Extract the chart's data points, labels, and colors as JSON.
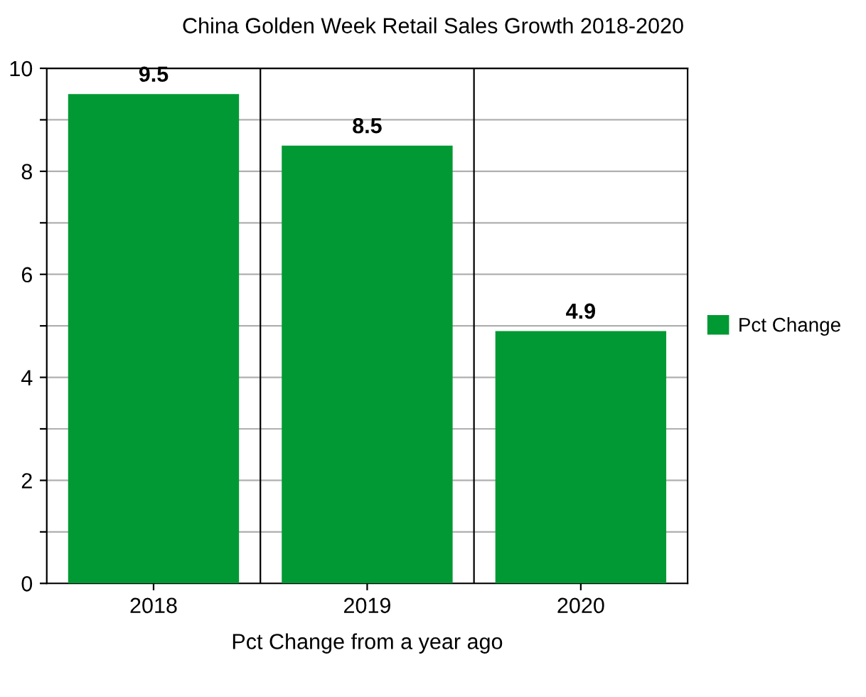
{
  "chart_data": {
    "type": "bar",
    "title": "China Golden Week Retail Sales Growth 2018-2020",
    "xlabel": "Pct Change from a year ago",
    "categories": [
      "2018",
      "2019",
      "2020"
    ],
    "series": [
      {
        "name": "Pct Change",
        "color": "#009933",
        "values": [
          9.5,
          8.5,
          4.9
        ]
      }
    ],
    "ylim": [
      0,
      10
    ],
    "yticks": [
      0,
      {
        "value": 1,
        "label": null
      },
      2,
      {
        "value": 3,
        "label": null
      },
      4,
      {
        "value": 5,
        "label": null
      },
      6,
      {
        "value": 7,
        "label": null
      },
      8,
      {
        "value": 9,
        "label": null
      },
      10
    ],
    "grid": true,
    "legend": "right",
    "data_labels": true
  }
}
